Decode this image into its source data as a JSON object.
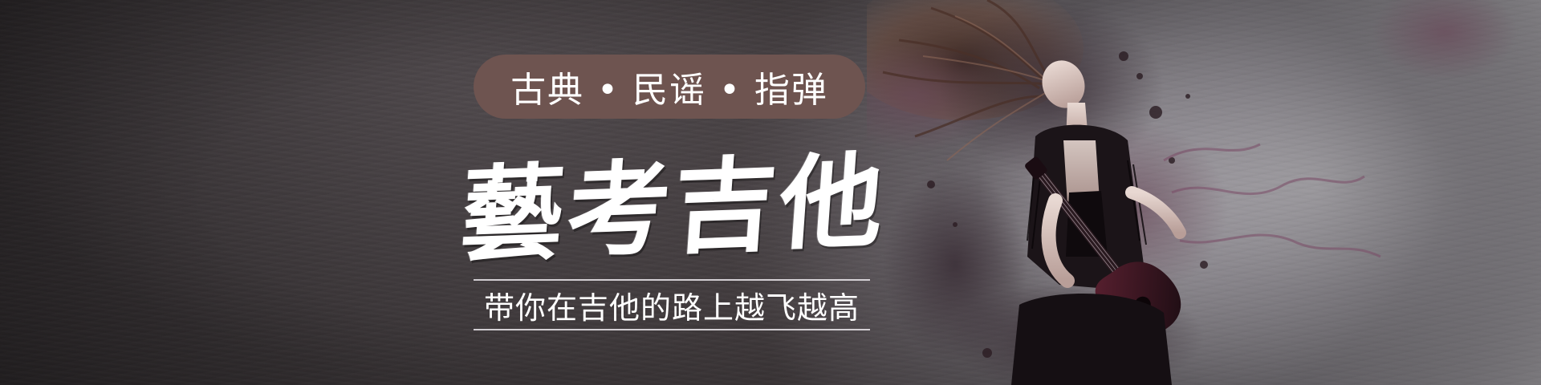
{
  "banner": {
    "tagline": "古典 • 民谣 • 指弹",
    "title": "藝考吉他",
    "subtitle": "带你在吉他的路上越飞越高"
  },
  "colors": {
    "pill": "#6e5450",
    "text": "#ffffff",
    "background_dark": "#2c282a",
    "background_light": "#c9c6cc"
  },
  "artwork": {
    "description_icon": "guitarist-ink-splash-illustration"
  }
}
